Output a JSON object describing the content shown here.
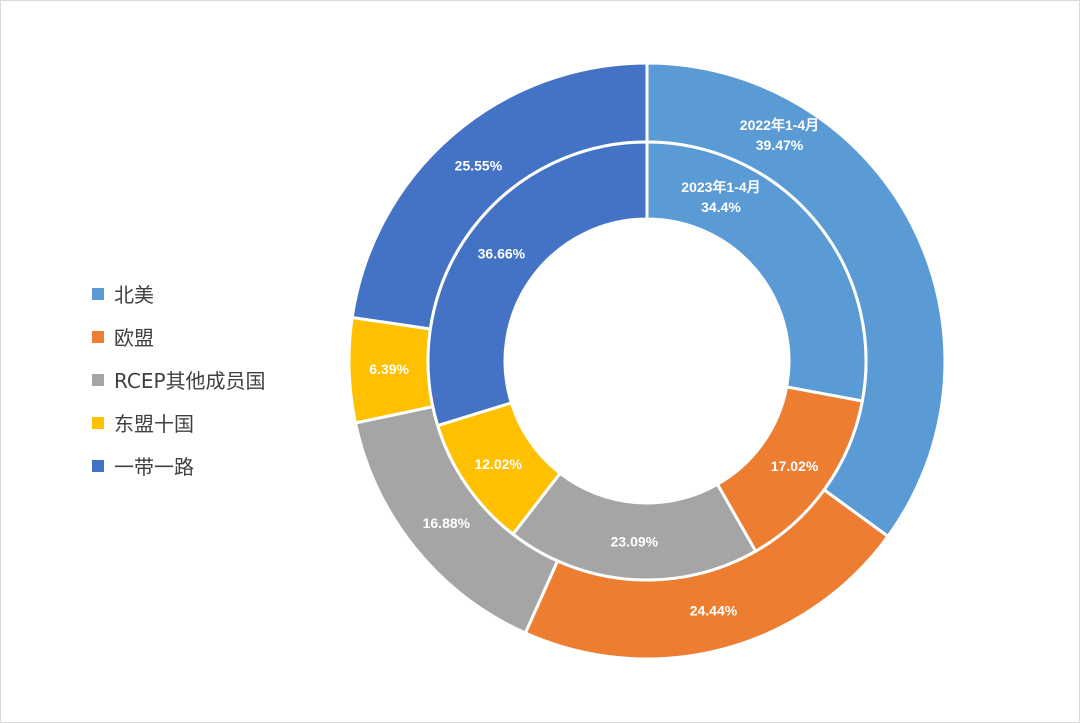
{
  "chart_data": {
    "type": "pie",
    "style": "nested-donut",
    "legend_position": "left",
    "categories": [
      "北美",
      "欧盟",
      "RCEP其他成员国",
      "东盟十国",
      "一带一路"
    ],
    "colors": [
      "#5B9BD5",
      "#ED7D31",
      "#A5A5A5",
      "#FFC000",
      "#4472C4"
    ],
    "series": [
      {
        "ring": "outer",
        "name": "2022年1-4月",
        "values": [
          39.47,
          24.44,
          16.88,
          6.39,
          25.55
        ],
        "labels": [
          "39.47%",
          "24.44%",
          "16.88%",
          "6.39%",
          "25.55%"
        ]
      },
      {
        "ring": "inner",
        "name": "2023年1-4月",
        "values": [
          34.4,
          17.02,
          23.09,
          12.02,
          36.66
        ],
        "labels": [
          "34.4%",
          "17.02%",
          "23.09%",
          "12.02%",
          "36.66%"
        ]
      }
    ]
  }
}
